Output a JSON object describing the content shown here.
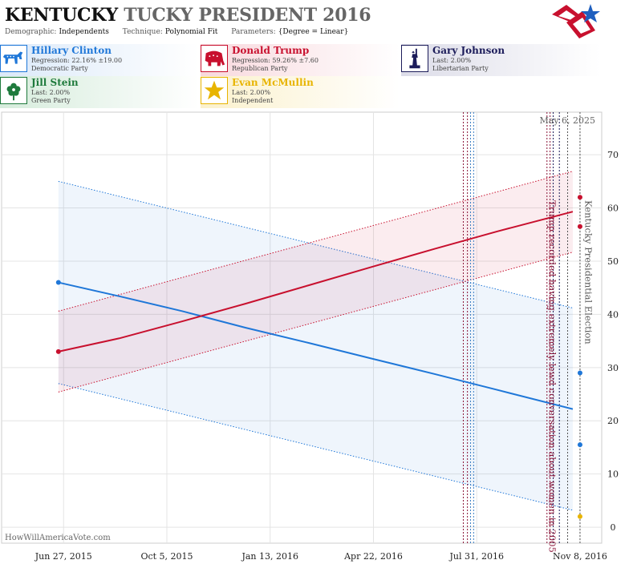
{
  "header": {
    "title_part1": "KENTUCKY",
    "title_part2": "TUCKY PRESIDENT 2016",
    "demographic_label": "Demographic:",
    "demographic_value": "Independents",
    "technique_label": "Technique:",
    "technique_value": "Polynomial Fit",
    "parameters_label": "Parameters:",
    "parameters_value": "{Degree = Linear}"
  },
  "candidates": [
    {
      "name": "Hillary Clinton",
      "line1": "Regression: 22.16% ±19.00",
      "line2": "Democratic Party",
      "color": "#1f77d8",
      "icon": "donkey-icon"
    },
    {
      "name": "Donald Trump",
      "line1": "Regression: 59.26% ±7.60",
      "line2": "Republican Party",
      "color": "#c8102e",
      "icon": "elephant-icon"
    },
    {
      "name": "Gary Johnson",
      "line1": "Last: 2.00%",
      "line2": "Libertarian Party",
      "color": "#1c1c5a",
      "icon": "statue-of-liberty-icon"
    },
    {
      "name": "Jill Stein",
      "line1": "Last: 2.00%",
      "line2": "Green Party",
      "color": "#1e7a3c",
      "icon": "flower-icon"
    },
    {
      "name": "Evan McMullin",
      "line1": "Last: 2.00%",
      "line2": "Independent",
      "color": "#e8b400",
      "icon": "star-icon"
    }
  ],
  "chart_data": {
    "type": "line",
    "date_label": "May 6, 2025",
    "watermark": "HowWillAmericaVote.com",
    "x_ticks": [
      "Jun 27, 2015",
      "Oct 5, 2015",
      "Jan 13, 2016",
      "Apr 22, 2016",
      "Jul 31, 2016",
      "Nov 8, 2016"
    ],
    "x_range": [
      "2015-04-28",
      "2016-11-29"
    ],
    "y_ticks": [
      "0",
      "10",
      "20",
      "30",
      "40",
      "50",
      "60",
      "70"
    ],
    "ylim": [
      -3,
      78
    ],
    "series": [
      {
        "name": "Hillary Clinton",
        "color": "#1f77d8",
        "start": {
          "x": "2015-06-22",
          "y": 46
        },
        "fit": [
          {
            "x": "2015-06-22",
            "y": 46.0
          },
          {
            "x": "2015-08-20",
            "y": 43.4
          },
          {
            "x": "2015-10-20",
            "y": 40.6
          },
          {
            "x": "2015-12-20",
            "y": 37.5
          },
          {
            "x": "2016-02-20",
            "y": 34.6
          },
          {
            "x": "2016-04-20",
            "y": 31.7
          },
          {
            "x": "2016-06-20",
            "y": 28.8
          },
          {
            "x": "2016-08-20",
            "y": 25.8
          },
          {
            "x": "2016-11-01",
            "y": 22.2
          }
        ],
        "band_upper": [
          {
            "x": "2015-06-22",
            "y": 65
          },
          {
            "x": "2016-11-01",
            "y": 41.2
          }
        ],
        "band_lower": [
          {
            "x": "2015-06-22",
            "y": 27
          },
          {
            "x": "2016-11-01",
            "y": 3.2
          }
        ],
        "markers": [
          {
            "x": "2016-11-08",
            "y": 29
          },
          {
            "x": "2016-11-08",
            "y": 15.5
          }
        ]
      },
      {
        "name": "Donald Trump",
        "color": "#c8102e",
        "start": {
          "x": "2015-06-22",
          "y": 33
        },
        "fit": [
          {
            "x": "2015-06-22",
            "y": 33.0
          },
          {
            "x": "2015-08-20",
            "y": 35.5
          },
          {
            "x": "2015-10-20",
            "y": 38.7
          },
          {
            "x": "2015-12-20",
            "y": 42.0
          },
          {
            "x": "2016-02-20",
            "y": 45.5
          },
          {
            "x": "2016-04-20",
            "y": 48.9
          },
          {
            "x": "2016-06-20",
            "y": 52.3
          },
          {
            "x": "2016-08-20",
            "y": 55.6
          },
          {
            "x": "2016-11-01",
            "y": 59.3
          }
        ],
        "band_upper": [
          {
            "x": "2015-06-22",
            "y": 40.6
          },
          {
            "x": "2016-11-01",
            "y": 66.9
          }
        ],
        "band_lower": [
          {
            "x": "2015-06-22",
            "y": 25.4
          },
          {
            "x": "2016-11-01",
            "y": 51.7
          }
        ],
        "markers": [
          {
            "x": "2016-11-08",
            "y": 62
          },
          {
            "x": "2016-11-08",
            "y": 56.5
          }
        ]
      },
      {
        "name": "Evan McMullin",
        "color": "#e8b400",
        "markers": [
          {
            "x": "2016-11-08",
            "y": 2
          }
        ]
      }
    ],
    "event_lines": [
      {
        "x": "2016-07-18",
        "color": "#8a1538"
      },
      {
        "x": "2016-07-22",
        "color": "#8a1538"
      },
      {
        "x": "2016-07-25",
        "color": "#3d7fc4"
      },
      {
        "x": "2016-07-28",
        "color": "#3d7fc4"
      },
      {
        "x": "2016-10-07",
        "color": "#8a1538"
      },
      {
        "x": "2016-10-10",
        "color": "#8a1538"
      },
      {
        "x": "2016-10-13",
        "color": "#1c1c5a"
      },
      {
        "x": "2016-10-19",
        "color": "#1c1c5a"
      },
      {
        "x": "2016-10-27",
        "color": "#555555"
      },
      {
        "x": "2016-11-08",
        "color": "#555555"
      }
    ],
    "annotations": [
      {
        "text": "Trump recorded having extremely lewd conversation about women in 2005",
        "x": "2016-10-09",
        "color": "#8a1538"
      },
      {
        "text": "Kentucky Presidential Election",
        "x": "2016-11-13",
        "color": "#555555"
      }
    ]
  }
}
